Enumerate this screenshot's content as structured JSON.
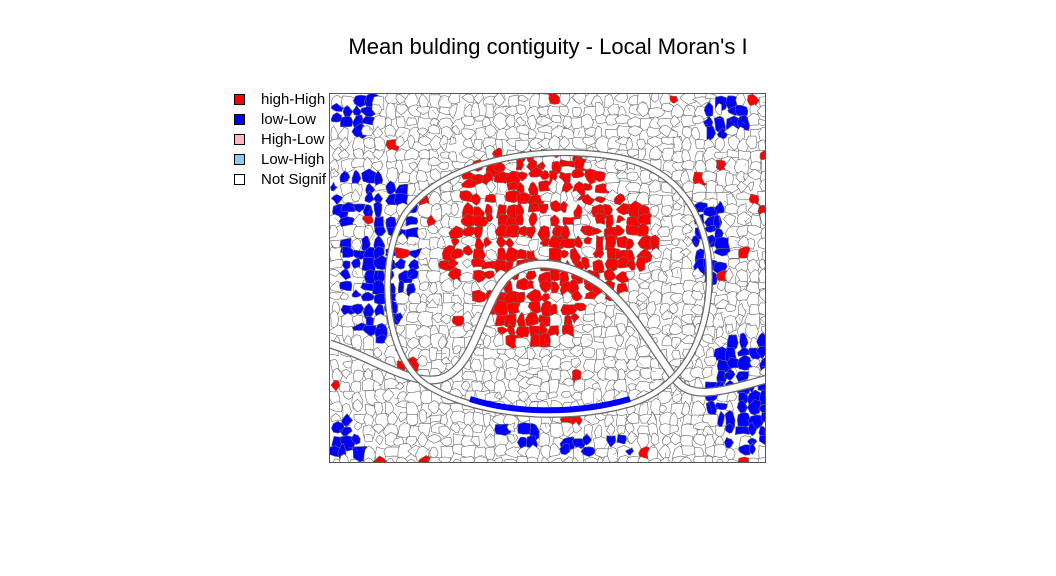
{
  "title": "Mean bulding contiguity - Local Moran's I",
  "legend": [
    {
      "label": "high-High",
      "color": "#ff0000"
    },
    {
      "label": "low-Low",
      "color": "#0000ff"
    },
    {
      "label": "High-Low",
      "color": "#ffb6c1"
    },
    {
      "label": "Low-High",
      "color": "#87ceeb"
    },
    {
      "label": "Not Signif",
      "color": "#ffffff"
    }
  ],
  "colors": {
    "border": "#6b6b6b",
    "river": "#ffffff",
    "frame": "#555555"
  }
}
